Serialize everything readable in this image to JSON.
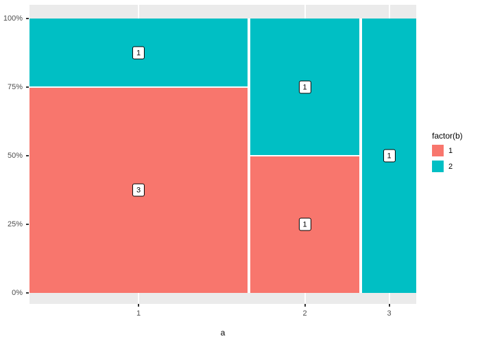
{
  "chart_data": {
    "type": "mosaic",
    "title": "",
    "xlabel": "a",
    "ylabel": "",
    "x_categories": [
      "1",
      "2",
      "3"
    ],
    "y_ticks": [
      "0%",
      "25%",
      "50%",
      "75%",
      "100%"
    ],
    "ylim": [
      0,
      1
    ],
    "grid": "white-on-gray",
    "legend_position": "right",
    "legend": {
      "title": "factor(b)",
      "entries": [
        {
          "label": "1",
          "color": "#F8766D"
        },
        {
          "label": "2",
          "color": "#00BFC4"
        }
      ]
    },
    "columns": [
      {
        "category": "1",
        "total": 4,
        "segments": [
          {
            "factor": "1",
            "count": 3,
            "proportion": 0.75
          },
          {
            "factor": "2",
            "count": 1,
            "proportion": 0.25
          }
        ]
      },
      {
        "category": "2",
        "total": 2,
        "segments": [
          {
            "factor": "1",
            "count": 1,
            "proportion": 0.5
          },
          {
            "factor": "2",
            "count": 1,
            "proportion": 0.5
          }
        ]
      },
      {
        "category": "3",
        "total": 1,
        "segments": [
          {
            "factor": "2",
            "count": 1,
            "proportion": 1.0
          }
        ]
      }
    ],
    "colors": {
      "1": "#F8766D",
      "2": "#00BFC4"
    },
    "panel_background": "#EBEBEB",
    "gridline_color": "#FFFFFF",
    "tick_label_color": "#4D4D4D"
  }
}
